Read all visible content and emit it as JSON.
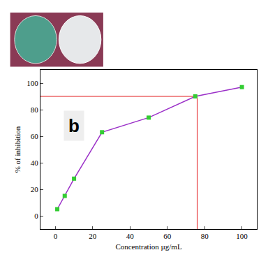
{
  "chart_data": {
    "type": "line",
    "x_label": "Concentration µg/mL",
    "y_label": "% of inhibition",
    "x": [
      1,
      5,
      10,
      25,
      50,
      75,
      100
    ],
    "values": [
      5,
      15,
      28,
      63,
      74,
      90,
      97
    ],
    "color": "#9b30c8",
    "marker": "square",
    "marker_color": "#33cc33",
    "xlim": [
      -8,
      108
    ],
    "ylim": [
      -10,
      110
    ],
    "xticks": [
      0,
      20,
      40,
      60,
      80,
      100
    ],
    "yticks": [
      0,
      20,
      40,
      60,
      80,
      100
    ],
    "reference_lines": {
      "x": 76,
      "y": 90,
      "color": "#e31a1c"
    },
    "annotations": [
      {
        "text": "b"
      }
    ],
    "grid": false
  }
}
